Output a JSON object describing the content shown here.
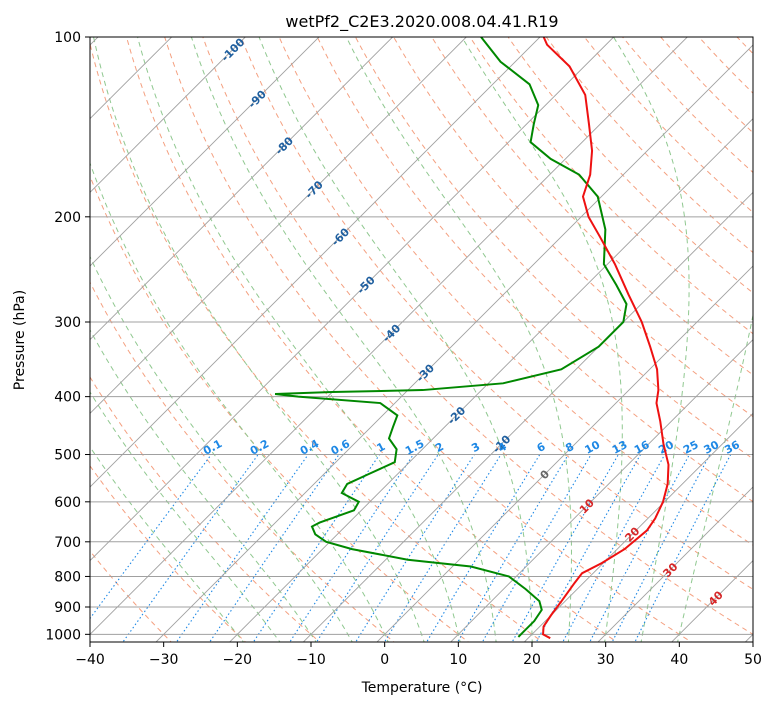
{
  "chart_data": {
    "type": "line",
    "chart_subtype": "skew-T log-P diagram",
    "title": "wetPf2_C2E3.2020.008.04.41.R19",
    "xlabel": "Temperature (°C)",
    "ylabel": "Pressure (hPa)",
    "xlim": [
      -40,
      50
    ],
    "ylim": [
      1030,
      100
    ],
    "y_scale": "log",
    "grid": true,
    "x_ticks": [
      -40,
      -30,
      -20,
      -10,
      0,
      10,
      20,
      30,
      40,
      50
    ],
    "x_tick_labels": [
      "−40",
      "−30",
      "−20",
      "−10",
      "0",
      "10",
      "20",
      "30",
      "40",
      "50"
    ],
    "y_ticks": [
      1000,
      900,
      800,
      700,
      600,
      500,
      400,
      300,
      200,
      100
    ],
    "y_tick_labels": [
      "1000",
      "900",
      "800",
      "700",
      "600",
      "500",
      "400",
      "300",
      "200",
      "100"
    ],
    "series": [
      {
        "role": "temperature",
        "color": "#ee1111",
        "points": [
          {
            "p": 1015,
            "t": 23.0
          },
          {
            "p": 1000,
            "t": 21.5
          },
          {
            "p": 970,
            "t": 20.5
          },
          {
            "p": 930,
            "t": 20.0
          },
          {
            "p": 880,
            "t": 19.5
          },
          {
            "p": 820,
            "t": 18.8
          },
          {
            "p": 790,
            "t": 18.5
          },
          {
            "p": 760,
            "t": 19.8
          },
          {
            "p": 720,
            "t": 21.0
          },
          {
            "p": 670,
            "t": 21.5
          },
          {
            "p": 640,
            "t": 21.0
          },
          {
            "p": 600,
            "t": 19.8
          },
          {
            "p": 560,
            "t": 18.0
          },
          {
            "p": 520,
            "t": 15.5
          },
          {
            "p": 480,
            "t": 12.0
          },
          {
            "p": 440,
            "t": 8.5
          },
          {
            "p": 410,
            "t": 5.5
          },
          {
            "p": 390,
            "t": 4.0
          },
          {
            "p": 360,
            "t": 1.0
          },
          {
            "p": 330,
            "t": -3.0
          },
          {
            "p": 300,
            "t": -7.5
          },
          {
            "p": 270,
            "t": -13.0
          },
          {
            "p": 240,
            "t": -19.0
          },
          {
            "p": 215,
            "t": -25.0
          },
          {
            "p": 200,
            "t": -29.0
          },
          {
            "p": 185,
            "t": -32.5
          },
          {
            "p": 170,
            "t": -34.5
          },
          {
            "p": 155,
            "t": -37.5
          },
          {
            "p": 140,
            "t": -41.5
          },
          {
            "p": 125,
            "t": -46.0
          },
          {
            "p": 112,
            "t": -52.0
          },
          {
            "p": 103,
            "t": -58.0
          },
          {
            "p": 100,
            "t": -59.5
          }
        ]
      },
      {
        "role": "dewpoint",
        "color": "#008800",
        "points": [
          {
            "p": 1010,
            "t": 18.5
          },
          {
            "p": 990,
            "t": 18.5
          },
          {
            "p": 950,
            "t": 18.5
          },
          {
            "p": 910,
            "t": 18.0
          },
          {
            "p": 880,
            "t": 16.5
          },
          {
            "p": 840,
            "t": 13.0
          },
          {
            "p": 800,
            "t": 9.0
          },
          {
            "p": 770,
            "t": 2.5
          },
          {
            "p": 750,
            "t": -7.0
          },
          {
            "p": 720,
            "t": -16.0
          },
          {
            "p": 700,
            "t": -20.5
          },
          {
            "p": 680,
            "t": -23.0
          },
          {
            "p": 660,
            "t": -24.5
          },
          {
            "p": 650,
            "t": -24.0
          },
          {
            "p": 620,
            "t": -21.0
          },
          {
            "p": 600,
            "t": -21.5
          },
          {
            "p": 580,
            "t": -25.0
          },
          {
            "p": 560,
            "t": -25.5
          },
          {
            "p": 540,
            "t": -24.0
          },
          {
            "p": 515,
            "t": -22.0
          },
          {
            "p": 490,
            "t": -23.5
          },
          {
            "p": 470,
            "t": -26.0
          },
          {
            "p": 450,
            "t": -27.0
          },
          {
            "p": 430,
            "t": -28.0
          },
          {
            "p": 410,
            "t": -32.0
          },
          {
            "p": 400,
            "t": -44.0
          },
          {
            "p": 396,
            "t": -47.5
          },
          {
            "p": 393,
            "t": -40.0
          },
          {
            "p": 390,
            "t": -28.0
          },
          {
            "p": 380,
            "t": -18.0
          },
          {
            "p": 360,
            "t": -12.0
          },
          {
            "p": 330,
            "t": -10.0
          },
          {
            "p": 300,
            "t": -10.0
          },
          {
            "p": 280,
            "t": -12.0
          },
          {
            "p": 260,
            "t": -16.0
          },
          {
            "p": 240,
            "t": -20.5
          },
          {
            "p": 210,
            "t": -25.0
          },
          {
            "p": 185,
            "t": -30.5
          },
          {
            "p": 170,
            "t": -36.0
          },
          {
            "p": 160,
            "t": -42.0
          },
          {
            "p": 150,
            "t": -47.0
          },
          {
            "p": 140,
            "t": -49.0
          },
          {
            "p": 130,
            "t": -51.0
          },
          {
            "p": 120,
            "t": -55.0
          },
          {
            "p": 110,
            "t": -62.0
          },
          {
            "p": 100,
            "t": -68.0
          }
        ]
      }
    ],
    "isotherm_labels": [
      "-100",
      "-90",
      "-80",
      "-70",
      "-60",
      "-50",
      "-40",
      "-30",
      "-20",
      "-10",
      "0",
      "10",
      "20",
      "30",
      "40"
    ],
    "mixing_ratio_labels": [
      "0.1",
      "0.2",
      "0.4",
      "0.6",
      "1",
      "1.5",
      "2",
      "3",
      "4",
      "6",
      "8",
      "10",
      "13",
      "16",
      "20",
      "25",
      "30",
      "36"
    ],
    "mixing_ratio_values": [
      0.1,
      0.2,
      0.4,
      0.6,
      1,
      1.5,
      2,
      3,
      4,
      6,
      8,
      10,
      13,
      16,
      20,
      25,
      30,
      36
    ],
    "colors": {
      "isotherm": "#a0a0a0",
      "isobar": "#a0a0a0",
      "dry_adiabat": "#f4a080",
      "moist_adiabat": "#90c890",
      "mixing_ratio": "#1e88e5",
      "isotherm_label_cold": "#1f5f9f",
      "isotherm_label_warm": "#d62728",
      "isotherm_label_zero": "#666666",
      "temperature": "#ee1111",
      "dewpoint": "#008800"
    }
  }
}
